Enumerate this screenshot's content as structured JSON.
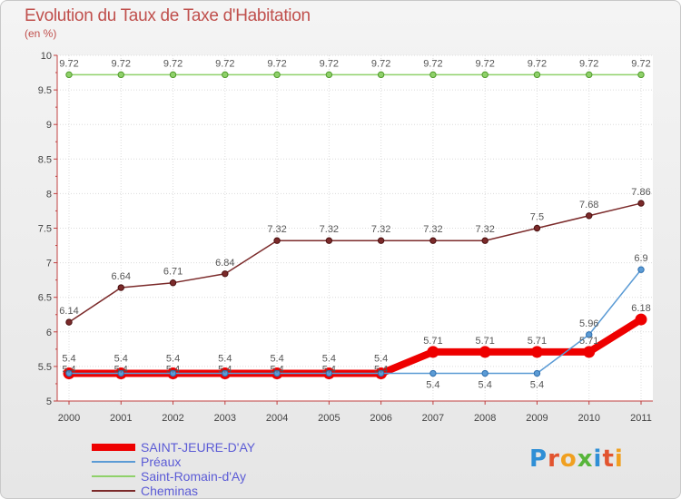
{
  "title": "Evolution du Taux de Taxe d'Habitation",
  "subtitle": "(en %)",
  "logo": {
    "text": "Proxiti",
    "colors": [
      "#2f8fd6",
      "#e2542f",
      "#f0a020",
      "#57b53a",
      "#2f8fd6",
      "#e2542f",
      "#f0a020"
    ]
  },
  "chart_data": {
    "type": "line",
    "title": "Evolution du Taux de Taxe d'Habitation",
    "ylabel": "(en %)",
    "x": [
      "2000",
      "2001",
      "2002",
      "2003",
      "2004",
      "2005",
      "2006",
      "2007",
      "2008",
      "2009",
      "2010",
      "2011"
    ],
    "ylim": [
      5,
      10
    ],
    "yticks": [
      "5",
      "5.5",
      "6",
      "6.5",
      "7",
      "7.5",
      "8",
      "8.5",
      "9",
      "9.5",
      "10"
    ],
    "grid": true,
    "legend_position": "bottom-left",
    "series": [
      {
        "name": "SAINT-JEURE-D'AY",
        "color": "#ee0000",
        "values": [
          5.4,
          5.4,
          5.4,
          5.4,
          5.4,
          5.4,
          5.4,
          5.71,
          5.71,
          5.71,
          5.71,
          6.18
        ],
        "labels": [
          "5.4",
          "5.4",
          "5.4",
          "5.4",
          "5.4",
          "5.4",
          "5.4",
          "5.71",
          "5.71",
          "5.71",
          "5.71",
          "6.18"
        ]
      },
      {
        "name": "Préaux",
        "color": "#5b9bd5",
        "values": [
          5.4,
          5.4,
          5.4,
          5.4,
          5.4,
          5.4,
          5.4,
          5.4,
          5.4,
          5.4,
          5.96,
          6.9
        ],
        "labels": [
          "5.4",
          "5.4",
          "5.4",
          "5.4",
          "5.4",
          "5.4",
          "5.4",
          "5.4",
          "5.4",
          "5.4",
          "5.96",
          "6.9"
        ]
      },
      {
        "name": "Saint-Romain-d'Ay",
        "color": "#8fd16a",
        "values": [
          9.72,
          9.72,
          9.72,
          9.72,
          9.72,
          9.72,
          9.72,
          9.72,
          9.72,
          9.72,
          9.72,
          9.72
        ],
        "labels": [
          "9.72",
          "9.72",
          "9.72",
          "9.72",
          "9.72",
          "9.72",
          "9.72",
          "9.72",
          "9.72",
          "9.72",
          "9.72",
          "9.72"
        ]
      },
      {
        "name": "Cheminas",
        "color": "#7b2a2a",
        "values": [
          6.14,
          6.64,
          6.71,
          6.84,
          7.32,
          7.32,
          7.32,
          7.32,
          7.32,
          7.5,
          7.68,
          7.86
        ],
        "labels": [
          "6.14",
          "6.64",
          "6.71",
          "6.84",
          "7.32",
          "7.32",
          "7.32",
          "7.32",
          "7.32",
          "7.5",
          "7.68",
          "7.86"
        ]
      }
    ]
  }
}
